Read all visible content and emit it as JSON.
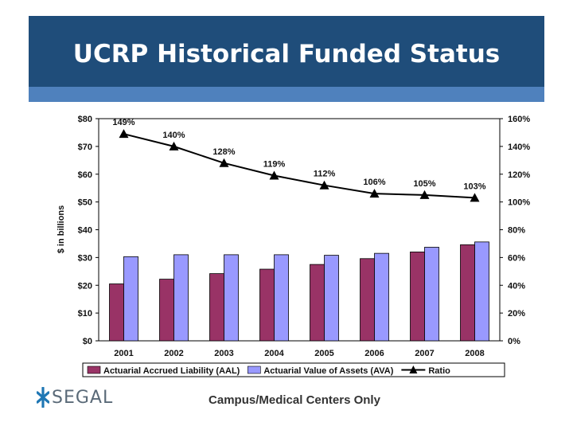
{
  "header": {
    "title": "UCRP Historical Funded Status"
  },
  "brand": {
    "name": "SEGAL",
    "color": "#1f77b4",
    "icon": "segal-asterisk-icon"
  },
  "footnote": "Campus/Medical Centers Only",
  "colors": {
    "header": "#1f4d7a",
    "band": "#4f81bd",
    "aal": "#993366",
    "ava": "#9999ff",
    "ratio": "#000000"
  },
  "chart_data": {
    "type": "bar",
    "title": "",
    "ylabel": "$ in billions",
    "categories": [
      "2001",
      "2002",
      "2003",
      "2004",
      "2005",
      "2006",
      "2007",
      "2008"
    ],
    "ylim": [
      0,
      80
    ],
    "y2lim": [
      0,
      160
    ],
    "y_ticks": [
      "$0",
      "$10",
      "$20",
      "$30",
      "$40",
      "$50",
      "$60",
      "$70",
      "$80"
    ],
    "y2_ticks": [
      "0%",
      "20%",
      "40%",
      "60%",
      "80%",
      "100%",
      "120%",
      "140%",
      "160%"
    ],
    "grid": false,
    "legend_position": "bottom",
    "series": [
      {
        "name": "Actuarial Accrued Liability (AAL)",
        "type": "bar",
        "axis": "left",
        "color": "#993366",
        "values": [
          20.5,
          22.2,
          24.2,
          25.8,
          27.5,
          29.6,
          32.0,
          34.6
        ]
      },
      {
        "name": "Actuarial Value of Assets (AVA)",
        "type": "bar",
        "axis": "left",
        "color": "#9999ff",
        "values": [
          30.3,
          31.0,
          31.0,
          31.0,
          30.8,
          31.5,
          33.7,
          35.6
        ]
      },
      {
        "name": "Ratio",
        "type": "line",
        "axis": "right",
        "color": "#000000",
        "marker": "triangle",
        "values": [
          149,
          140,
          128,
          119,
          112,
          106,
          105,
          103
        ],
        "labels": [
          "149%",
          "140%",
          "128%",
          "119%",
          "112%",
          "106%",
          "105%",
          "103%"
        ]
      }
    ]
  }
}
